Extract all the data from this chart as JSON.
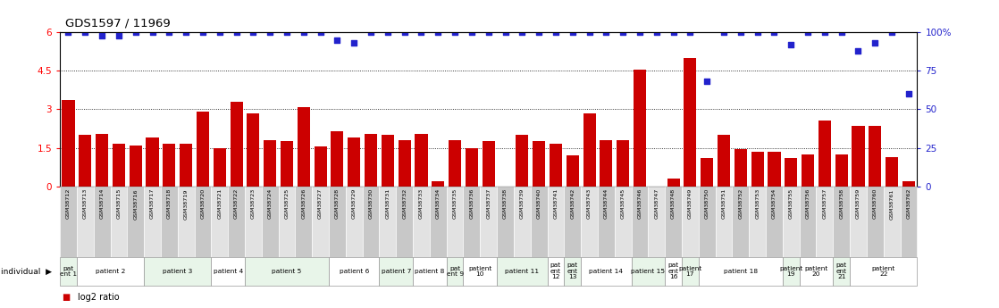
{
  "title": "GDS1597 / 11969",
  "gsm_labels": [
    "GSM38712",
    "GSM38713",
    "GSM38714",
    "GSM38715",
    "GSM38716",
    "GSM38717",
    "GSM38718",
    "GSM38719",
    "GSM38720",
    "GSM38721",
    "GSM38722",
    "GSM38723",
    "GSM38724",
    "GSM38725",
    "GSM38726",
    "GSM38727",
    "GSM38728",
    "GSM38729",
    "GSM38730",
    "GSM38731",
    "GSM38732",
    "GSM38733",
    "GSM38734",
    "GSM38735",
    "GSM38736",
    "GSM38737",
    "GSM38738",
    "GSM38739",
    "GSM38740",
    "GSM38741",
    "GSM38742",
    "GSM38743",
    "GSM38744",
    "GSM38745",
    "GSM38746",
    "GSM38747",
    "GSM38748",
    "GSM38749",
    "GSM38750",
    "GSM38751",
    "GSM38752",
    "GSM38753",
    "GSM38754",
    "GSM38755",
    "GSM38756",
    "GSM38757",
    "GSM38758",
    "GSM38759",
    "GSM38760",
    "GSM38761",
    "GSM38762"
  ],
  "log2_ratio": [
    3.35,
    2.0,
    2.05,
    1.65,
    1.6,
    1.9,
    1.65,
    1.65,
    2.9,
    1.5,
    3.3,
    2.85,
    1.8,
    1.75,
    3.1,
    1.55,
    2.15,
    1.9,
    2.05,
    2.0,
    1.8,
    2.05,
    0.2,
    1.8,
    1.5,
    1.75,
    0.0,
    2.0,
    1.75,
    1.65,
    1.2,
    2.85,
    1.8,
    1.8,
    4.55,
    0.0,
    0.3,
    5.0,
    1.1,
    2.0,
    1.45,
    1.35,
    1.35,
    1.1,
    1.25,
    2.55,
    1.25,
    2.35,
    2.35,
    1.15,
    0.2
  ],
  "percentile_rank": [
    100,
    100,
    98,
    98,
    100,
    100,
    100,
    100,
    100,
    100,
    100,
    100,
    100,
    100,
    100,
    100,
    95,
    93,
    100,
    100,
    100,
    100,
    100,
    100,
    100,
    100,
    100,
    100,
    100,
    100,
    100,
    100,
    100,
    100,
    100,
    100,
    100,
    100,
    68,
    100,
    100,
    100,
    100,
    92,
    100,
    100,
    100,
    88,
    93,
    100,
    60
  ],
  "patients": [
    {
      "label": "pat\nent 1",
      "start": 0,
      "end": 1,
      "color": "#e8f5e9"
    },
    {
      "label": "patient 2",
      "start": 1,
      "end": 5,
      "color": "#ffffff"
    },
    {
      "label": "patient 3",
      "start": 5,
      "end": 9,
      "color": "#e8f5e9"
    },
    {
      "label": "patient 4",
      "start": 9,
      "end": 11,
      "color": "#ffffff"
    },
    {
      "label": "patient 5",
      "start": 11,
      "end": 16,
      "color": "#e8f5e9"
    },
    {
      "label": "patient 6",
      "start": 16,
      "end": 19,
      "color": "#ffffff"
    },
    {
      "label": "patient 7",
      "start": 19,
      "end": 21,
      "color": "#e8f5e9"
    },
    {
      "label": "patient 8",
      "start": 21,
      "end": 23,
      "color": "#ffffff"
    },
    {
      "label": "pat\nent 9",
      "start": 23,
      "end": 24,
      "color": "#e8f5e9"
    },
    {
      "label": "patient\n10",
      "start": 24,
      "end": 26,
      "color": "#ffffff"
    },
    {
      "label": "patient 11",
      "start": 26,
      "end": 29,
      "color": "#e8f5e9"
    },
    {
      "label": "pat\nent\n12",
      "start": 29,
      "end": 30,
      "color": "#ffffff"
    },
    {
      "label": "pat\nent\n13",
      "start": 30,
      "end": 31,
      "color": "#e8f5e9"
    },
    {
      "label": "patient 14",
      "start": 31,
      "end": 34,
      "color": "#ffffff"
    },
    {
      "label": "patient 15",
      "start": 34,
      "end": 36,
      "color": "#e8f5e9"
    },
    {
      "label": "pat\nent\n16",
      "start": 36,
      "end": 37,
      "color": "#ffffff"
    },
    {
      "label": "patient\n17",
      "start": 37,
      "end": 38,
      "color": "#e8f5e9"
    },
    {
      "label": "patient 18",
      "start": 38,
      "end": 43,
      "color": "#ffffff"
    },
    {
      "label": "patient\n19",
      "start": 43,
      "end": 44,
      "color": "#e8f5e9"
    },
    {
      "label": "patient\n20",
      "start": 44,
      "end": 46,
      "color": "#ffffff"
    },
    {
      "label": "pat\nent\n21",
      "start": 46,
      "end": 47,
      "color": "#e8f5e9"
    },
    {
      "label": "patient\n22",
      "start": 47,
      "end": 51,
      "color": "#ffffff"
    }
  ],
  "bar_color": "#cc0000",
  "dot_color": "#2222cc",
  "yticks_left": [
    0,
    1.5,
    3.0,
    4.5,
    6.0
  ],
  "ytick_labels_left": [
    "0",
    "1.5",
    "3",
    "4.5",
    "6"
  ],
  "yticks_right": [
    0,
    25,
    50,
    75,
    100
  ],
  "ytick_labels_right": [
    "0",
    "25",
    "50",
    "75",
    "100%"
  ]
}
